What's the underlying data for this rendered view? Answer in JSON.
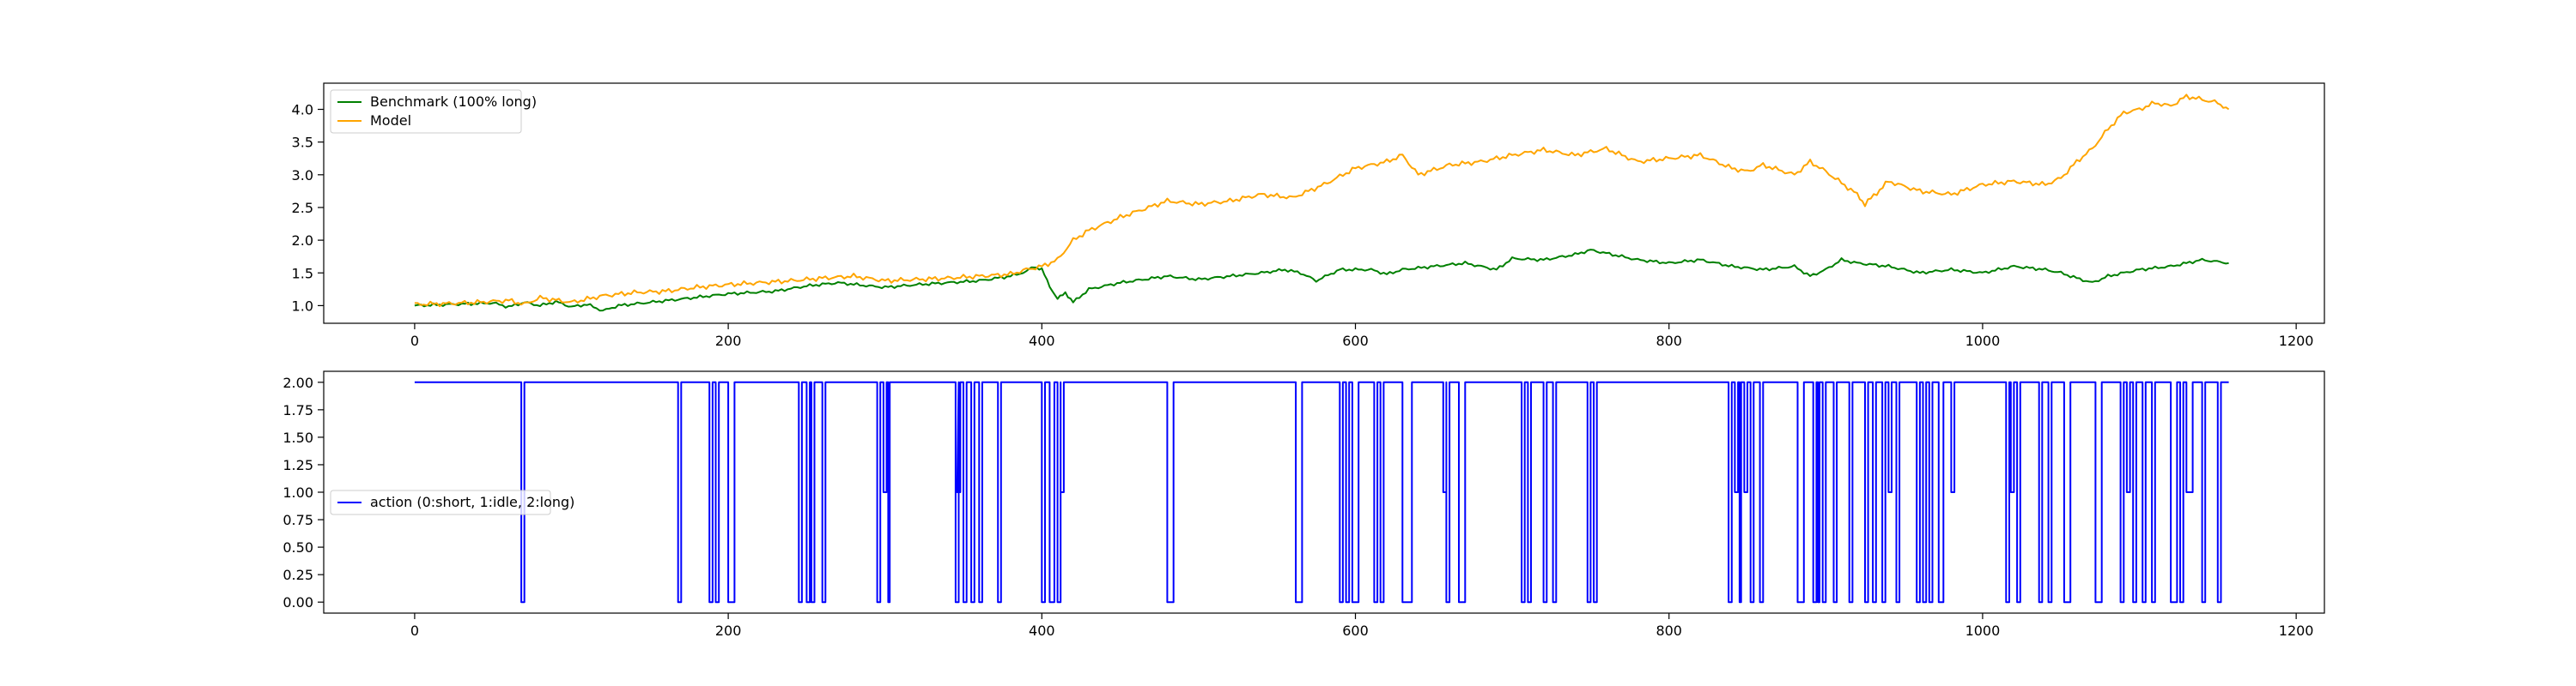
{
  "chart_data": [
    {
      "type": "line",
      "xlim": [
        -58,
        1218
      ],
      "ylim": [
        0.73,
        4.4
      ],
      "x_ticks": [
        0,
        200,
        400,
        600,
        800,
        1000,
        1200
      ],
      "y_ticks": [
        1.0,
        1.5,
        2.0,
        2.5,
        3.0,
        3.5,
        4.0
      ],
      "legend_position": "upper-left",
      "grid": false,
      "series": [
        {
          "name": "Benchmark (100% long)",
          "color": "#008000",
          "x": [
            0,
            50,
            60,
            70,
            80,
            90,
            100,
            110,
            120,
            130,
            150,
            170,
            200,
            230,
            250,
            270,
            290,
            300,
            320,
            340,
            360,
            380,
            390,
            395,
            400,
            405,
            410,
            415,
            420,
            430,
            450,
            480,
            500,
            520,
            540,
            555,
            565,
            575,
            590,
            610,
            620,
            630,
            650,
            670,
            690,
            700,
            720,
            740,
            750,
            760,
            780,
            800,
            820,
            840,
            860,
            880,
            890,
            900,
            910,
            920,
            940,
            960,
            980,
            1000,
            1020,
            1040,
            1050,
            1060,
            1070,
            1080,
            1100,
            1120,
            1140,
            1157
          ],
          "y": [
            1.0,
            1.04,
            0.98,
            1.05,
            1.0,
            1.06,
            0.98,
            1.02,
            0.92,
            1.0,
            1.05,
            1.1,
            1.18,
            1.22,
            1.3,
            1.35,
            1.3,
            1.28,
            1.32,
            1.35,
            1.38,
            1.45,
            1.52,
            1.6,
            1.55,
            1.3,
            1.1,
            1.2,
            1.05,
            1.25,
            1.35,
            1.45,
            1.4,
            1.45,
            1.5,
            1.55,
            1.5,
            1.38,
            1.55,
            1.55,
            1.48,
            1.55,
            1.6,
            1.65,
            1.55,
            1.72,
            1.7,
            1.78,
            1.85,
            1.8,
            1.7,
            1.65,
            1.7,
            1.6,
            1.55,
            1.6,
            1.45,
            1.55,
            1.7,
            1.65,
            1.6,
            1.5,
            1.55,
            1.5,
            1.6,
            1.55,
            1.5,
            1.42,
            1.35,
            1.45,
            1.55,
            1.6,
            1.7,
            1.65
          ]
        },
        {
          "name": "Model",
          "color": "#ffa500",
          "x": [
            0,
            20,
            40,
            60,
            70,
            80,
            100,
            120,
            140,
            160,
            180,
            200,
            220,
            240,
            260,
            280,
            300,
            320,
            340,
            360,
            380,
            390,
            400,
            410,
            420,
            430,
            450,
            480,
            500,
            520,
            540,
            560,
            580,
            600,
            620,
            630,
            640,
            660,
            680,
            700,
            720,
            740,
            760,
            780,
            800,
            820,
            840,
            850,
            860,
            880,
            890,
            900,
            920,
            925,
            940,
            960,
            980,
            1000,
            1020,
            1040,
            1050,
            1060,
            1070,
            1080,
            1090,
            1100,
            1110,
            1120,
            1130,
            1140,
            1150,
            1157
          ],
          "y": [
            1.02,
            1.03,
            1.05,
            1.08,
            1.02,
            1.12,
            1.05,
            1.15,
            1.2,
            1.22,
            1.28,
            1.32,
            1.35,
            1.38,
            1.42,
            1.45,
            1.38,
            1.4,
            1.42,
            1.45,
            1.48,
            1.55,
            1.6,
            1.7,
            2.0,
            2.15,
            2.35,
            2.6,
            2.55,
            2.6,
            2.7,
            2.65,
            2.85,
            3.1,
            3.2,
            3.3,
            3.0,
            3.15,
            3.2,
            3.3,
            3.38,
            3.3,
            3.4,
            3.2,
            3.25,
            3.3,
            3.1,
            3.05,
            3.15,
            3.0,
            3.2,
            3.05,
            2.7,
            2.55,
            2.9,
            2.75,
            2.7,
            2.85,
            2.9,
            2.85,
            2.95,
            3.2,
            3.4,
            3.7,
            3.95,
            4.0,
            4.1,
            4.05,
            4.2,
            4.15,
            4.1,
            4.0
          ]
        }
      ]
    },
    {
      "type": "line",
      "xlim": [
        -58,
        1218
      ],
      "ylim": [
        -0.1,
        2.1
      ],
      "x_ticks": [
        0,
        200,
        400,
        600,
        800,
        1000,
        1200
      ],
      "y_ticks": [
        "0.00",
        "0.25",
        "0.50",
        "0.75",
        "1.00",
        "1.25",
        "1.50",
        "1.75",
        "2.00"
      ],
      "legend_position": "center-left",
      "grid": false,
      "series": [
        {
          "name": "action (0:short, 1:idle, 2:long)",
          "color": "#0000ff",
          "drawstyle": "steps",
          "default_value": 2,
          "dips": [
            [
              68,
              70,
              0
            ],
            [
              168,
              170,
              0
            ],
            [
              188,
              190,
              0
            ],
            [
              192,
              194,
              0
            ],
            [
              200,
              204,
              0
            ],
            [
              245,
              247,
              0
            ],
            [
              250,
              252,
              0
            ],
            [
              253,
              255,
              0
            ],
            [
              260,
              262,
              0
            ],
            [
              295,
              297,
              0
            ],
            [
              299,
              301,
              1
            ],
            [
              302,
              303,
              0
            ],
            [
              345,
              347,
              0
            ],
            [
              346,
              348,
              1
            ],
            [
              350,
              352,
              0
            ],
            [
              355,
              357,
              0
            ],
            [
              360,
              362,
              0
            ],
            [
              372,
              374,
              0
            ],
            [
              400,
              402,
              0
            ],
            [
              405,
              408,
              0
            ],
            [
              410,
              412,
              0
            ],
            [
              412,
              414,
              1
            ],
            [
              480,
              484,
              0
            ],
            [
              562,
              566,
              0
            ],
            [
              590,
              592,
              0
            ],
            [
              594,
              596,
              0
            ],
            [
              598,
              602,
              0
            ],
            [
              612,
              614,
              0
            ],
            [
              616,
              618,
              0
            ],
            [
              630,
              636,
              0
            ],
            [
              656,
              658,
              1
            ],
            [
              658,
              660,
              0
            ],
            [
              666,
              670,
              0
            ],
            [
              706,
              708,
              0
            ],
            [
              710,
              712,
              0
            ],
            [
              720,
              722,
              0
            ],
            [
              726,
              728,
              0
            ],
            [
              748,
              750,
              0
            ],
            [
              752,
              754,
              0
            ],
            [
              838,
              840,
              0
            ],
            [
              842,
              844,
              1
            ],
            [
              845,
              846,
              0
            ],
            [
              848,
              850,
              1
            ],
            [
              852,
              854,
              0
            ],
            [
              858,
              860,
              0
            ],
            [
              882,
              886,
              0
            ],
            [
              892,
              894,
              0
            ],
            [
              895,
              896,
              0
            ],
            [
              898,
              900,
              0
            ],
            [
              905,
              907,
              0
            ],
            [
              915,
              917,
              0
            ],
            [
              925,
              927,
              0
            ],
            [
              930,
              932,
              0
            ],
            [
              936,
              938,
              0
            ],
            [
              940,
              942,
              1
            ],
            [
              945,
              947,
              0
            ],
            [
              958,
              960,
              0
            ],
            [
              962,
              964,
              0
            ],
            [
              966,
              968,
              0
            ],
            [
              972,
              975,
              0
            ],
            [
              980,
              982,
              1
            ],
            [
              1015,
              1017,
              0
            ],
            [
              1018,
              1020,
              1
            ],
            [
              1022,
              1024,
              0
            ],
            [
              1036,
              1038,
              0
            ],
            [
              1042,
              1044,
              0
            ],
            [
              1052,
              1056,
              0
            ],
            [
              1072,
              1076,
              0
            ],
            [
              1088,
              1090,
              0
            ],
            [
              1092,
              1094,
              1
            ],
            [
              1096,
              1098,
              0
            ],
            [
              1102,
              1104,
              0
            ],
            [
              1108,
              1110,
              0
            ],
            [
              1120,
              1124,
              0
            ],
            [
              1126,
              1128,
              0
            ],
            [
              1130,
              1134,
              1
            ],
            [
              1140,
              1142,
              0
            ],
            [
              1150,
              1152,
              0
            ]
          ],
          "x_end": 1157
        }
      ]
    }
  ]
}
